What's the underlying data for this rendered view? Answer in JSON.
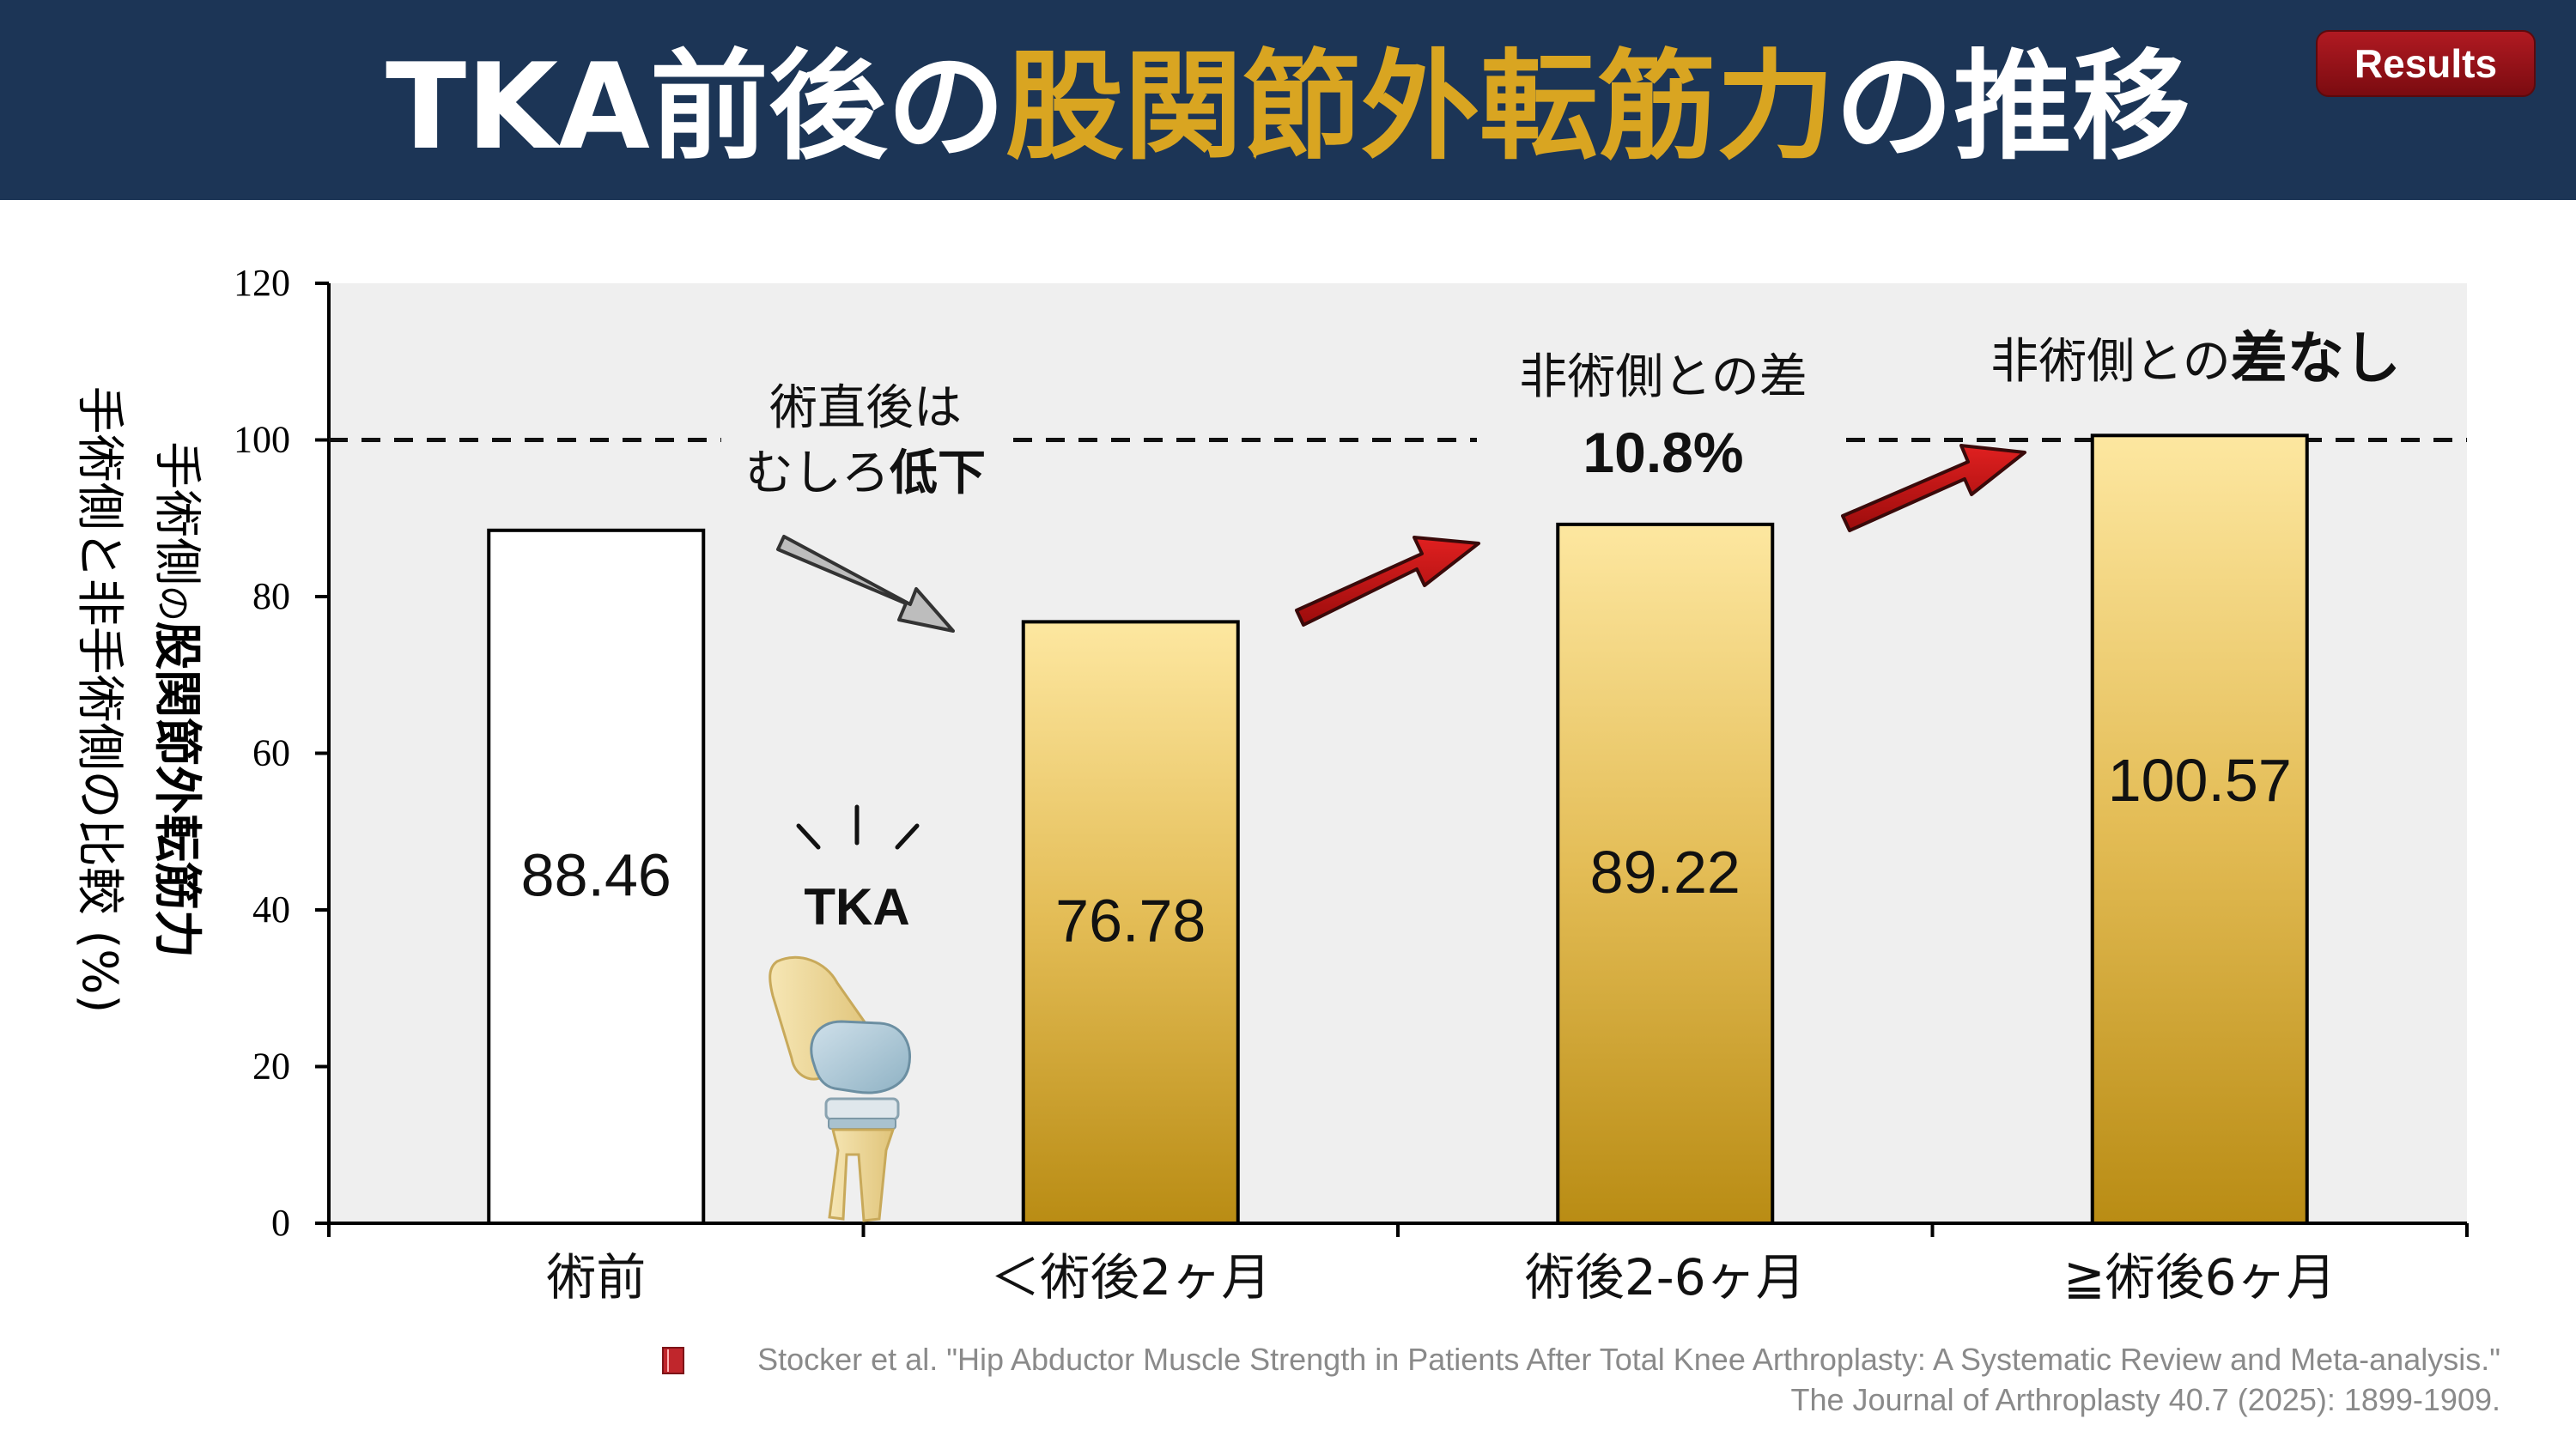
{
  "header": {
    "title_part1": "TKA前後の",
    "title_part2": "股関節外転筋力",
    "title_part3": "の推移",
    "badge_label": "Results",
    "bg_color": "#1c3556",
    "accent_color": "#d9a521"
  },
  "chart_data": {
    "type": "bar",
    "categories": [
      "術前",
      "＜術後2ヶ月",
      "術後2-6ヶ月",
      "≧術後6ヶ月"
    ],
    "values": [
      88.46,
      76.78,
      89.22,
      100.57
    ],
    "value_labels": [
      "88.46",
      "76.78",
      "89.22",
      "100.57"
    ],
    "ylim": [
      0,
      120
    ],
    "yticks": [
      0,
      20,
      40,
      60,
      80,
      100,
      120
    ],
    "reference_line": 100,
    "ylabel_outer": "手術側と非手術側の比較 (%)",
    "ylabel_inner_pre": "手術側",
    "ylabel_inner_no": "の",
    "ylabel_inner_bold": "股関節外転筋力",
    "grid": false,
    "bar_colors": [
      "#ffffff",
      "gold-gradient",
      "gold-gradient",
      "gold-gradient"
    ]
  },
  "annotations": {
    "drop_line1": "術直後は",
    "drop_line2_pre": "むしろ",
    "drop_line2_bold": "低下",
    "diff_line1": "非術側との差",
    "diff_value": "10.8%",
    "nodiff_pre": "非術側との",
    "nodiff_bold": "差なし",
    "tka_label": "TKA"
  },
  "citation": {
    "line1": "Stocker et al. \"Hip Abductor Muscle Strength in Patients After Total Knee Arthroplasty: A Systematic Review and Meta-analysis.\"",
    "line2": "The Journal of Arthroplasty 40.7 (2025): 1899-1909."
  },
  "icons": {
    "book": "book-icon",
    "knee": "knee-implant-icon",
    "burst": "impact-lines-icon"
  }
}
